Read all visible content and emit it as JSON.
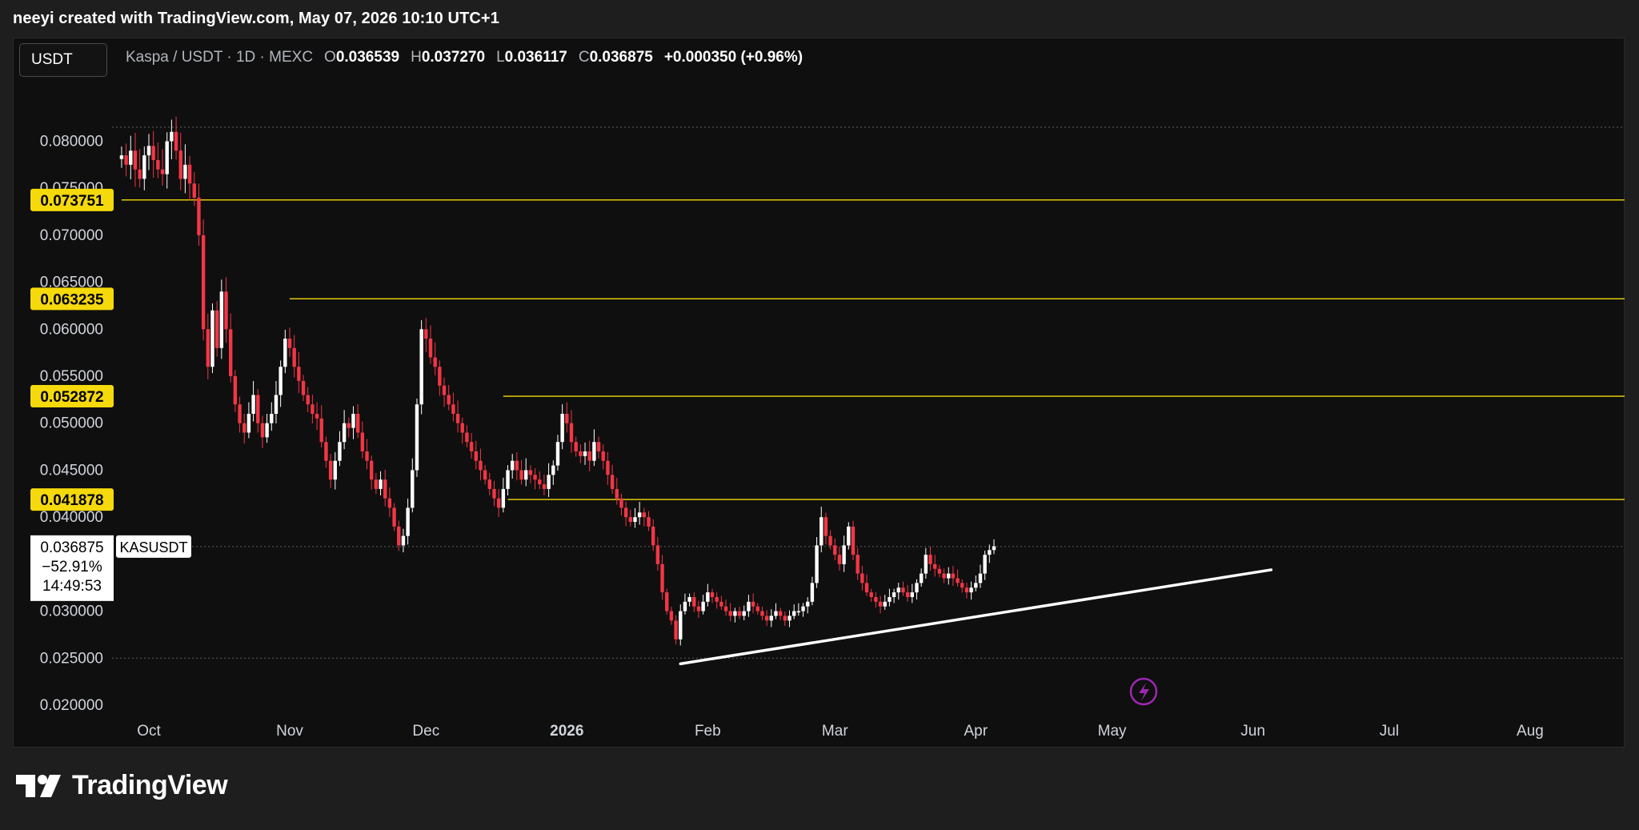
{
  "caption": "neeyi created with TradingView.com, May 07, 2026 10:10 UTC+1",
  "symbol_box": "USDT",
  "legend": {
    "title": "Kaspa / USDT · 1D · MEXC",
    "open_label": "O",
    "open": "0.036539",
    "high_label": "H",
    "high": "0.037270",
    "low_label": "L",
    "low": "0.036117",
    "close_label": "C",
    "close": "0.036875",
    "change": "+0.000350 (+0.96%)"
  },
  "brand": "TradingView",
  "colors": {
    "up": "#ffffff",
    "down": "#f23645",
    "level": "#f5d90a",
    "trend": "#ffffff",
    "bg": "#0f0f0f"
  },
  "chart_data": {
    "type": "candlestick",
    "ylim": [
      0.02,
      0.082
    ],
    "y_ticks": [
      "0.080000",
      "0.075000",
      "0.070000",
      "0.065000",
      "0.060000",
      "0.055000",
      "0.050000",
      "0.045000",
      "0.040000",
      "0.035000",
      "0.030000",
      "0.025000",
      "0.020000"
    ],
    "x_ticks": [
      {
        "label": "Oct",
        "date": "2025-10-01"
      },
      {
        "label": "Nov",
        "date": "2025-11-01"
      },
      {
        "label": "Dec",
        "date": "2025-12-01"
      },
      {
        "label": "2026",
        "date": "2026-01-01"
      },
      {
        "label": "Feb",
        "date": "2026-02-01"
      },
      {
        "label": "Mar",
        "date": "2026-03-01"
      },
      {
        "label": "Apr",
        "date": "2026-04-01"
      },
      {
        "label": "May",
        "date": "2026-05-01"
      },
      {
        "label": "Jun",
        "date": "2026-06-01"
      },
      {
        "label": "Jul",
        "date": "2026-07-01"
      },
      {
        "label": "Aug",
        "date": "2026-08-01"
      }
    ],
    "levels": [
      {
        "value": 0.073751,
        "label": "0.073751",
        "from": "2025-09-25"
      },
      {
        "value": 0.063235,
        "label": "0.063235",
        "from": "2025-11-01"
      },
      {
        "value": 0.052872,
        "label": "0.052872",
        "from": "2025-12-18"
      },
      {
        "value": 0.041878,
        "label": "0.041878",
        "from": "2025-12-19"
      }
    ],
    "trendline": {
      "start_date": "2026-01-26",
      "start": 0.0244,
      "end_date": "2026-06-05",
      "end": 0.0344
    },
    "current": {
      "value": 0.036875,
      "price_label": "0.036875",
      "change_label": "−52.91%",
      "countdown": "14:49:53",
      "tag": "KASUSDT"
    },
    "max_dotted": 0.0815,
    "min_dotted": 0.025,
    "series_start": "2025-09-25",
    "close": [
      0.0785,
      0.0775,
      0.079,
      0.077,
      0.076,
      0.0785,
      0.0795,
      0.078,
      0.077,
      0.0765,
      0.08,
      0.081,
      0.079,
      0.076,
      0.0775,
      0.0755,
      0.074,
      0.07,
      0.06,
      0.056,
      0.062,
      0.058,
      0.064,
      0.06,
      0.055,
      0.052,
      0.05,
      0.049,
      0.051,
      0.053,
      0.05,
      0.0485,
      0.05,
      0.051,
      0.053,
      0.056,
      0.059,
      0.058,
      0.056,
      0.0545,
      0.053,
      0.052,
      0.051,
      0.0505,
      0.048,
      0.046,
      0.044,
      0.046,
      0.048,
      0.05,
      0.0495,
      0.051,
      0.049,
      0.047,
      0.046,
      0.044,
      0.043,
      0.044,
      0.042,
      0.041,
      0.039,
      0.037,
      0.038,
      0.041,
      0.045,
      0.052,
      0.06,
      0.059,
      0.057,
      0.056,
      0.054,
      0.053,
      0.052,
      0.051,
      0.05,
      0.049,
      0.048,
      0.047,
      0.046,
      0.045,
      0.044,
      0.043,
      0.042,
      0.041,
      0.043,
      0.045,
      0.046,
      0.045,
      0.044,
      0.045,
      0.0445,
      0.044,
      0.0435,
      0.043,
      0.0445,
      0.0455,
      0.048,
      0.051,
      0.05,
      0.048,
      0.047,
      0.0465,
      0.047,
      0.046,
      0.048,
      0.047,
      0.046,
      0.0445,
      0.043,
      0.042,
      0.041,
      0.04,
      0.0395,
      0.04,
      0.0405,
      0.04,
      0.039,
      0.037,
      0.035,
      0.032,
      0.03,
      0.029,
      0.027,
      0.03,
      0.031,
      0.0315,
      0.0305,
      0.03,
      0.031,
      0.032,
      0.0315,
      0.031,
      0.0305,
      0.03,
      0.0295,
      0.03,
      0.0295,
      0.03,
      0.031,
      0.0305,
      0.03,
      0.0295,
      0.029,
      0.0295,
      0.03,
      0.0295,
      0.029,
      0.0295,
      0.03,
      0.03,
      0.0305,
      0.031,
      0.033,
      0.037,
      0.04,
      0.038,
      0.037,
      0.036,
      0.035,
      0.037,
      0.039,
      0.036,
      0.034,
      0.033,
      0.032,
      0.0315,
      0.031,
      0.0305,
      0.031,
      0.0315,
      0.032,
      0.0325,
      0.032,
      0.0315,
      0.032,
      0.033,
      0.034,
      0.036,
      0.035,
      0.0345,
      0.034,
      0.0335,
      0.034,
      0.0335,
      0.033,
      0.0325,
      0.032,
      0.0325,
      0.033,
      0.034,
      0.036,
      0.0365,
      0.0369
    ]
  }
}
